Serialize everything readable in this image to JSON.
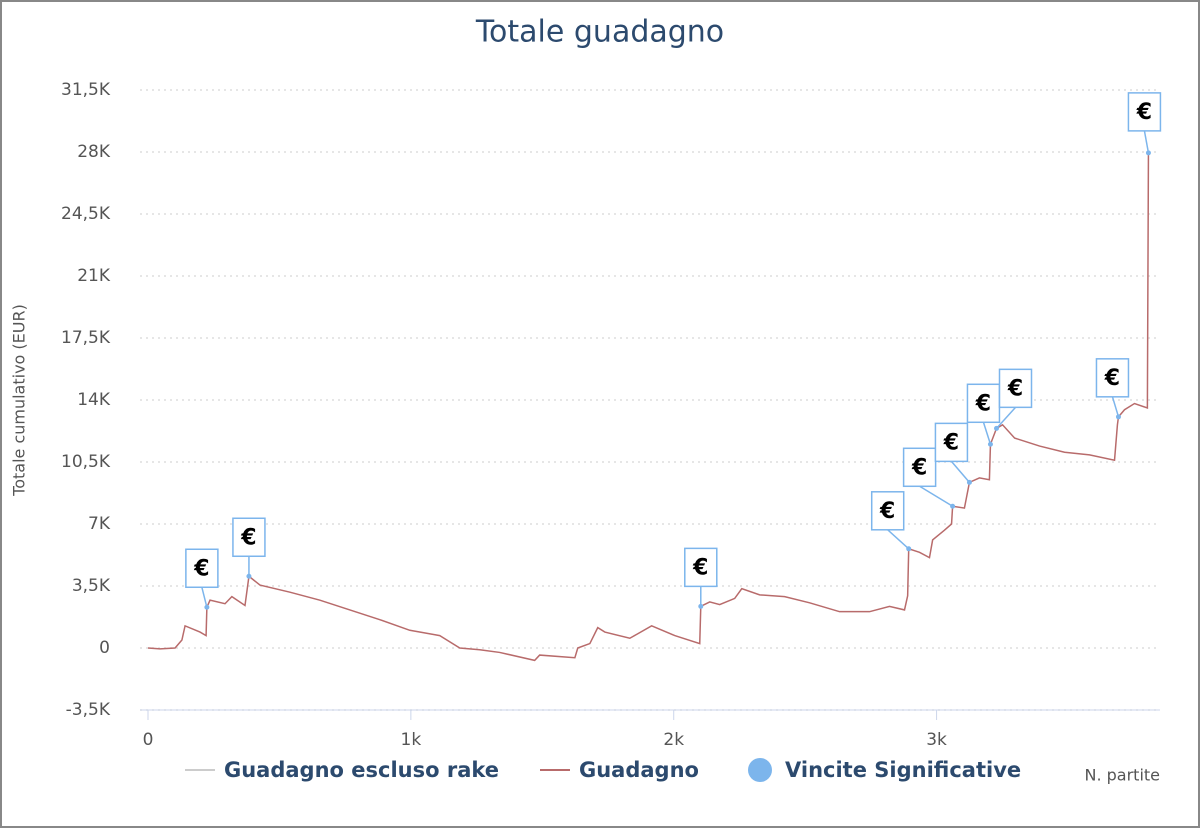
{
  "chart_data": {
    "type": "line",
    "title": "Totale guadagno",
    "y_label": "Totale cumulativo (EUR)",
    "x_label": "N. partite",
    "xlim": [
      0,
      3850
    ],
    "ylim": [
      -3500,
      31500
    ],
    "xticks": [
      0,
      {
        "value": 1000,
        "label": "1k"
      },
      {
        "value": 2000,
        "label": "2k"
      },
      {
        "value": 3000,
        "label": "3k"
      }
    ],
    "yticks": [
      {
        "value": -3500,
        "label": "-3,5K"
      },
      0,
      {
        "value": 3500,
        "label": "3,5K"
      },
      {
        "value": 7000,
        "label": "7K"
      },
      {
        "value": 10500,
        "label": "10,5K"
      },
      {
        "value": 14000,
        "label": "14K"
      },
      {
        "value": 17500,
        "label": "17,5K"
      },
      {
        "value": 21000,
        "label": "21K"
      },
      {
        "value": 24500,
        "label": "24,5K"
      },
      {
        "value": 28000,
        "label": "28K"
      },
      {
        "value": 31500,
        "label": "31,5K"
      }
    ],
    "grid": true,
    "series": [
      {
        "name": "Guadagno escluso rake",
        "color": "#cccccc",
        "visible": false
      },
      {
        "name": "Guadagno",
        "color": "#b86b6b",
        "type": "line",
        "x": [
          0,
          46,
          103,
          129,
          141,
          198,
          221,
          224,
          236,
          293,
          319,
          369,
          384,
          426,
          540,
          654,
          768,
          882,
          996,
          1110,
          1186,
          1262,
          1338,
          1471,
          1490,
          1624,
          1635,
          1681,
          1711,
          1738,
          1833,
          1916,
          2004,
          2099,
          2103,
          2137,
          2175,
          2232,
          2259,
          2327,
          2422,
          2517,
          2631,
          2745,
          2821,
          2878,
          2890,
          2894,
          2935,
          2973,
          2985,
          3030,
          3057,
          3061,
          3106,
          3125,
          3163,
          3201,
          3205,
          3228,
          3251,
          3297,
          3392,
          3487,
          3582,
          3677,
          3688,
          3692,
          3715,
          3753,
          3802,
          3806
        ],
        "values": [
          0,
          -50,
          0,
          450,
          1250,
          900,
          700,
          2300,
          2700,
          2500,
          2900,
          2400,
          4050,
          3550,
          3150,
          2700,
          2150,
          1600,
          1000,
          700,
          0,
          -100,
          -250,
          -700,
          -400,
          -550,
          0,
          250,
          1150,
          900,
          550,
          1250,
          700,
          250,
          2350,
          2600,
          2450,
          2800,
          3350,
          3000,
          2900,
          2550,
          2050,
          2050,
          2350,
          2150,
          2950,
          5600,
          5400,
          5100,
          6100,
          6650,
          7000,
          8000,
          7900,
          9350,
          9600,
          9500,
          11500,
          12400,
          12600,
          11850,
          11400,
          11050,
          10900,
          10600,
          12600,
          13050,
          13450,
          13800,
          13550,
          27950
        ]
      },
      {
        "name": "Vincite Significative",
        "color": "#7cb5ec",
        "type": "scatter",
        "x": [
          224,
          384,
          2103,
          2894,
          3061,
          3125,
          3205,
          3228,
          3692,
          3806
        ],
        "values": [
          2300,
          4050,
          2350,
          5600,
          8000,
          9350,
          11500,
          12400,
          13050,
          27950
        ],
        "annotation": "€"
      }
    ]
  }
}
